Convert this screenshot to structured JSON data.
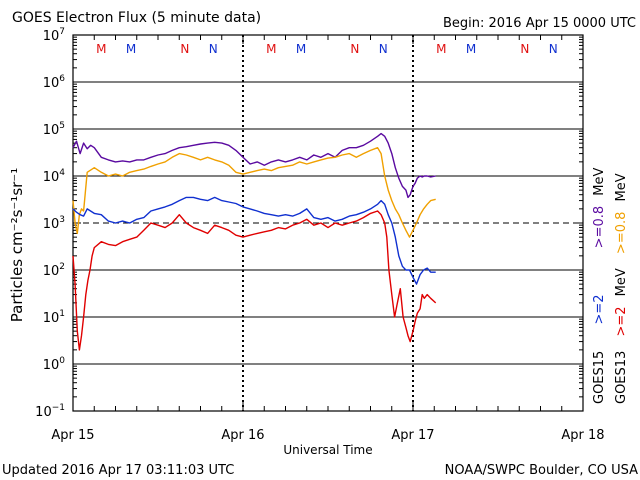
{
  "header": {
    "title": "GOES Electron Flux (5 minute data)",
    "begin": "Begin: 2016 Apr 15 0000 UTC"
  },
  "footer": {
    "updated": "Updated 2016 Apr 17 03:11:03 UTC",
    "credit": "NOAA/SWPC Boulder, CO USA"
  },
  "colors": {
    "goes15_ge2": "#1030d0",
    "goes13_ge2": "#e00000",
    "goes15_ge08": "#5a0aa0",
    "goes13_ge08": "#f0a000",
    "marker_M": "#e01010",
    "marker_N": "#1030d0",
    "marker_M_blue": "#1030d0",
    "marker_N_red": "#e01010"
  },
  "legend": {
    "ge2_label": ">=2",
    "ge2_unit": "MeV",
    "ge08_label": ">=0.8",
    "ge08_unit": "MeV",
    "goes15": "GOES15",
    "goes13": "GOES13"
  },
  "chart_data": {
    "type": "line",
    "title": "GOES Electron Flux (5 minute data)",
    "xlabel": "Universal Time",
    "ylabel": "Particles cm⁻²s⁻¹sr⁻¹",
    "yscale": "log",
    "ylim": [
      0.1,
      10000000
    ],
    "xlim": [
      0,
      72
    ],
    "x_unit": "hours since 2016 Apr 15 0000 UTC",
    "x_ticks": [
      {
        "label": "Apr 15",
        "x": 0
      },
      {
        "label": "Apr 16",
        "x": 24
      },
      {
        "label": "Apr 17",
        "x": 48
      },
      {
        "label": "Apr 18",
        "x": 72
      }
    ],
    "y_ticks": [
      {
        "mant": "10",
        "exp": "7",
        "value": 10000000
      },
      {
        "mant": "10",
        "exp": "6",
        "value": 1000000
      },
      {
        "mant": "10",
        "exp": "5",
        "value": 100000
      },
      {
        "mant": "10",
        "exp": "4",
        "value": 10000
      },
      {
        "mant": "10",
        "exp": "3",
        "value": 1000
      },
      {
        "mant": "10",
        "exp": "2",
        "value": 100
      },
      {
        "mant": "10",
        "exp": "1",
        "value": 10
      },
      {
        "mant": "10",
        "exp": "0",
        "value": 1
      },
      {
        "mant": "10",
        "exp": "−1",
        "value": 0.1
      }
    ],
    "alert_threshold": 1000,
    "markers": [
      {
        "label": "M",
        "x": 4.0,
        "color": "#e01010"
      },
      {
        "label": "M",
        "x": 8.2,
        "color": "#1030d0"
      },
      {
        "label": "N",
        "x": 15.8,
        "color": "#e01010"
      },
      {
        "label": "N",
        "x": 19.8,
        "color": "#1030d0"
      },
      {
        "label": "M",
        "x": 28.0,
        "color": "#e01010"
      },
      {
        "label": "M",
        "x": 32.2,
        "color": "#1030d0"
      },
      {
        "label": "N",
        "x": 39.8,
        "color": "#e01010"
      },
      {
        "label": "N",
        "x": 43.8,
        "color": "#1030d0"
      },
      {
        "label": "M",
        "x": 52.0,
        "color": "#e01010"
      },
      {
        "label": "M",
        "x": 56.2,
        "color": "#1030d0"
      },
      {
        "label": "N",
        "x": 63.8,
        "color": "#e01010"
      },
      {
        "label": "N",
        "x": 67.8,
        "color": "#1030d0"
      }
    ],
    "series": [
      {
        "name": "GOES15 >=0.8 MeV",
        "color": "#5a0aa0",
        "x": [
          0,
          0.5,
          1,
          1.5,
          2,
          2.5,
          3,
          4,
          5,
          6,
          7,
          8,
          9,
          10,
          11,
          12,
          13,
          14,
          15,
          16,
          17,
          18,
          19,
          20,
          21,
          22,
          23,
          24,
          25,
          26,
          27,
          28,
          29,
          30,
          31,
          32,
          33,
          34,
          35,
          36,
          37,
          38,
          39,
          40,
          41,
          42,
          43,
          43.5,
          44,
          44.5,
          45,
          45.5,
          46,
          46.5,
          47,
          47.3,
          47.6,
          48,
          48.3,
          48.6,
          49,
          49.3,
          49.6,
          50,
          50.5,
          51.2
        ],
        "values": [
          40000,
          55000,
          30000,
          50000,
          38000,
          45000,
          40000,
          25000,
          22000,
          20000,
          21000,
          20000,
          22000,
          22000,
          25000,
          28000,
          30000,
          35000,
          40000,
          42000,
          45000,
          48000,
          50000,
          52000,
          50000,
          45000,
          35000,
          25000,
          18000,
          20000,
          17000,
          20000,
          22000,
          20000,
          22000,
          25000,
          22000,
          28000,
          25000,
          30000,
          25000,
          35000,
          40000,
          40000,
          45000,
          55000,
          70000,
          80000,
          70000,
          50000,
          30000,
          15000,
          9000,
          6000,
          5000,
          3500,
          4000,
          6000,
          7000,
          9000,
          10000,
          9500,
          10000,
          10000,
          9500,
          10000
        ]
      },
      {
        "name": "GOES13 >=0.8 MeV",
        "color": "#f0a000",
        "x": [
          0,
          0.3,
          0.6,
          0.9,
          1.2,
          1.5,
          2,
          3,
          4,
          5,
          6,
          7,
          8,
          9,
          10,
          11,
          12,
          13,
          14,
          15,
          16,
          17,
          18,
          19,
          20,
          21,
          22,
          23,
          24,
          25,
          26,
          27,
          28,
          29,
          30,
          31,
          32,
          33,
          34,
          35,
          36,
          37,
          38,
          39,
          40,
          41,
          42,
          43,
          43.5,
          44,
          44.5,
          45,
          45.5,
          46,
          46.5,
          47,
          47.5,
          48,
          48.5,
          49,
          49.5,
          50,
          50.5,
          51.2
        ],
        "values": [
          3000,
          1000,
          600,
          1500,
          2000,
          1800,
          12000,
          15000,
          12000,
          10000,
          11000,
          10000,
          12000,
          13000,
          14000,
          16000,
          18000,
          20000,
          25000,
          30000,
          28000,
          25000,
          22000,
          25000,
          22000,
          20000,
          17000,
          12000,
          11000,
          12000,
          13000,
          14000,
          13000,
          15000,
          16000,
          17000,
          20000,
          18000,
          20000,
          22000,
          24000,
          25000,
          28000,
          30000,
          25000,
          30000,
          35000,
          40000,
          30000,
          10000,
          5000,
          3000,
          2000,
          1500,
          1000,
          700,
          500,
          700,
          1000,
          1500,
          2000,
          2500,
          3000,
          3200
        ]
      },
      {
        "name": "GOES15 >=2 MeV",
        "color": "#1030d0",
        "x": [
          0,
          0.5,
          1,
          1.5,
          2,
          3,
          4,
          5,
          6,
          7,
          8,
          9,
          10,
          11,
          12,
          13,
          14,
          15,
          16,
          17,
          18,
          19,
          20,
          21,
          22,
          23,
          24,
          25,
          26,
          27,
          28,
          29,
          30,
          31,
          32,
          33,
          34,
          35,
          36,
          37,
          38,
          39,
          40,
          41,
          42,
          43,
          43.5,
          44,
          44.5,
          45,
          45.5,
          46,
          46.5,
          47,
          47.5,
          48,
          48.5,
          49,
          49.5,
          50,
          50.5,
          51.2
        ],
        "values": [
          2000,
          1700,
          1500,
          1400,
          2000,
          1600,
          1500,
          1100,
          1000,
          1100,
          1000,
          1200,
          1300,
          1800,
          2000,
          2200,
          2500,
          3000,
          3500,
          3500,
          3200,
          3000,
          3500,
          3000,
          2800,
          2600,
          2200,
          2000,
          1800,
          1600,
          1500,
          1400,
          1500,
          1400,
          1600,
          2000,
          1300,
          1200,
          1300,
          1100,
          1200,
          1400,
          1500,
          1700,
          2000,
          2500,
          3000,
          2500,
          1500,
          1000,
          500,
          200,
          120,
          100,
          100,
          70,
          50,
          80,
          100,
          110,
          90,
          90
        ]
      },
      {
        "name": "GOES13 >=2 MeV",
        "color": "#e00000",
        "x": [
          0,
          0.3,
          0.6,
          0.9,
          1.2,
          1.5,
          1.8,
          2.1,
          2.4,
          2.7,
          3,
          4,
          5,
          6,
          7,
          8,
          9,
          10,
          11,
          12,
          13,
          14,
          15,
          16,
          17,
          18,
          19,
          20,
          21,
          22,
          23,
          24,
          25,
          26,
          27,
          28,
          29,
          30,
          31,
          32,
          33,
          34,
          35,
          36,
          37,
          38,
          39,
          40,
          41,
          42,
          43,
          43.5,
          44,
          44.3,
          44.6,
          45,
          45.4,
          45.8,
          46.2,
          46.6,
          47,
          47.3,
          47.6,
          48,
          48.3,
          48.6,
          49,
          49.3,
          49.6,
          50,
          50.5,
          51.2
        ],
        "values": [
          200,
          50,
          5,
          2,
          4,
          10,
          30,
          60,
          100,
          200,
          300,
          400,
          350,
          330,
          400,
          450,
          500,
          700,
          1000,
          900,
          800,
          1000,
          1500,
          1000,
          800,
          700,
          600,
          900,
          800,
          700,
          550,
          500,
          550,
          600,
          650,
          700,
          800,
          750,
          900,
          1000,
          1200,
          900,
          1000,
          800,
          1000,
          900,
          1000,
          1100,
          1300,
          1600,
          1800,
          1500,
          1000,
          500,
          100,
          30,
          10,
          20,
          40,
          10,
          6,
          4,
          3,
          5,
          8,
          12,
          15,
          30,
          25,
          30,
          25,
          20
        ]
      }
    ]
  }
}
